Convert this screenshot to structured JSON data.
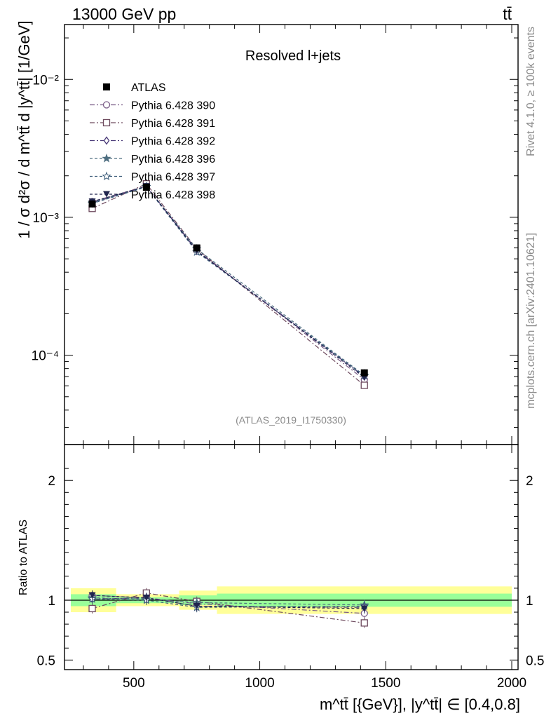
{
  "header": {
    "left": "13000 GeV pp",
    "right": "tt̄"
  },
  "side_labels": {
    "rivet": "Rivet 4.1.0, ≥ 100k events",
    "mcplots": "mcplots.cern.ch [arXiv:2401.10621]"
  },
  "watermark": "(ATLAS_2019_I1750330)",
  "colors": {
    "green_band": "#99ff99",
    "yellow_band": "#ffff99",
    "data": "#000000",
    "s390": "#7a5c87",
    "s391": "#6e4a5e",
    "s392": "#4a3a78",
    "s396": "#4e6e80",
    "s397": "#3a5a78",
    "s398": "#20254e"
  },
  "chart_data": [
    {
      "type": "line",
      "title": "Resolved l+jets",
      "ylabel": "1 / σ d²σ / d m^tt̄ d |y^tt̄| [1/GeV]",
      "yscale": "log",
      "ylim": [
        2.25e-05,
        0.025
      ],
      "xlim": [
        225,
        2025
      ],
      "y_ticks": [
        {
          "value": 0.01,
          "label": "10⁻²"
        },
        {
          "value": 0.001,
          "label": "10⁻³"
        },
        {
          "value": 0.0001,
          "label": "10⁻⁴"
        }
      ],
      "x": [
        335,
        550,
        750,
        1415
      ],
      "data": {
        "name": "ATLAS",
        "values": [
          0.00125,
          0.00165,
          0.0006,
          7.45e-05
        ]
      },
      "series": [
        {
          "key": "s390",
          "name": "Pythia 6.428 390",
          "marker": "circle-open",
          "dash": "7,3,2,3",
          "values": [
            0.0013,
            0.00168,
            0.00058,
            6.65e-05
          ]
        },
        {
          "key": "s391",
          "name": "Pythia 6.428 391",
          "marker": "square-open",
          "dash": "7,3,2,3",
          "values": [
            0.00116,
            0.00175,
            0.00059,
            6.05e-05
          ]
        },
        {
          "key": "s392",
          "name": "Pythia 6.428 392",
          "marker": "diamond-open",
          "dash": "7,3,2,3",
          "values": [
            0.00127,
            0.00168,
            0.00057,
            7e-05
          ]
        },
        {
          "key": "s396",
          "name": "Pythia 6.428 396",
          "marker": "star-filled",
          "dash": "4,3",
          "values": [
            0.00128,
            0.00167,
            0.00059,
            7.15e-05
          ]
        },
        {
          "key": "s397",
          "name": "Pythia 6.428 397",
          "marker": "star-open",
          "dash": "4,3",
          "values": [
            0.00126,
            0.00166,
            0.00056,
            7.1e-05
          ]
        },
        {
          "key": "s398",
          "name": "Pythia 6.428 398",
          "marker": "triangle-down",
          "dash": "4,3",
          "values": [
            0.0013,
            0.00168,
            0.00057,
            6.9e-05
          ]
        }
      ]
    },
    {
      "type": "line",
      "ylabel": "Ratio to ATLAS",
      "xlabel": "m^tt̄ [{GeV}], |y^tt̄| ∈ [0.4,0.8]",
      "ylim": [
        0.42,
        2.3
      ],
      "xlim": [
        225,
        2025
      ],
      "y_ticks": [
        {
          "value": 0.5,
          "label": "0.5"
        },
        {
          "value": 1,
          "label": "1"
        },
        {
          "value": 2,
          "label": "2"
        }
      ],
      "x_ticks": [
        {
          "value": 500,
          "label": "500"
        },
        {
          "value": 1000,
          "label": "1000"
        },
        {
          "value": 1500,
          "label": "1500"
        },
        {
          "value": 2000,
          "label": "2000"
        }
      ],
      "bins": [
        [
          250,
          430
        ],
        [
          430,
          680
        ],
        [
          680,
          830
        ],
        [
          830,
          2000
        ]
      ],
      "bands": {
        "green": [
          [
            0.95,
            1.05
          ],
          [
            0.975,
            1.025
          ],
          [
            0.96,
            1.04
          ],
          [
            0.945,
            1.055
          ]
        ],
        "yellow": [
          [
            0.9,
            1.1
          ],
          [
            0.95,
            1.05
          ],
          [
            0.92,
            1.08
          ],
          [
            0.885,
            1.115
          ]
        ]
      },
      "x": [
        335,
        550,
        750,
        1415
      ],
      "series": [
        {
          "key": "s390",
          "values": [
            1.04,
            1.02,
            0.97,
            0.89
          ]
        },
        {
          "key": "s391",
          "values": [
            0.93,
            1.06,
            0.99,
            0.81
          ]
        },
        {
          "key": "s392",
          "values": [
            1.01,
            1.02,
            0.95,
            0.94
          ]
        },
        {
          "key": "s396",
          "values": [
            1.02,
            1.01,
            0.98,
            0.96
          ]
        },
        {
          "key": "s397",
          "values": [
            1.01,
            1.0,
            0.94,
            0.95
          ]
        },
        {
          "key": "s398",
          "values": [
            1.04,
            1.02,
            0.95,
            0.93
          ]
        }
      ]
    }
  ]
}
